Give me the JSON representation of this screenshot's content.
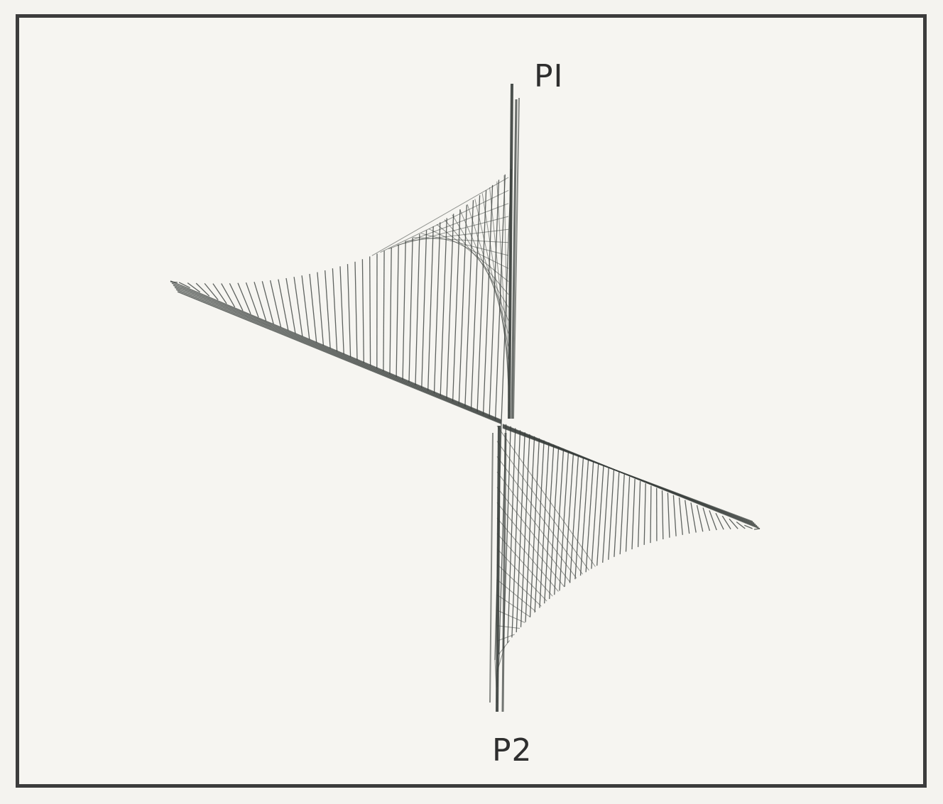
{
  "figure": {
    "labels": {
      "top_point": "PI",
      "bottom_point": "P2"
    },
    "colors": {
      "frame": "#3c3c3c",
      "lines": "#3a3f3c",
      "label": "#2e2e2e"
    }
  }
}
